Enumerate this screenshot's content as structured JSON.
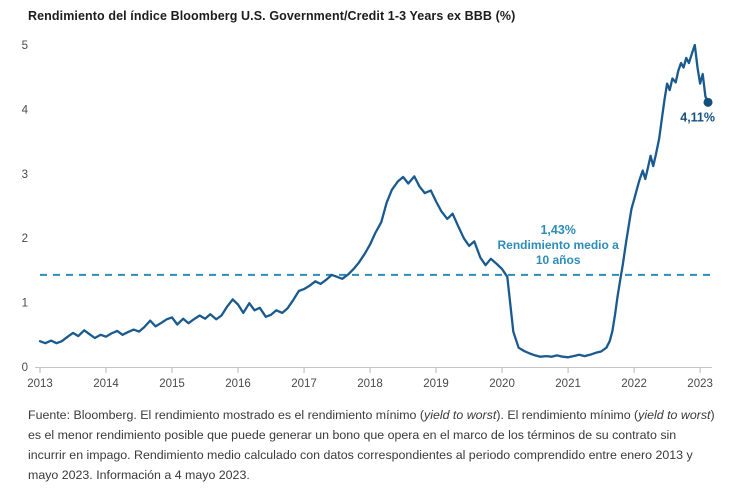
{
  "title": "Rendimiento del índice Bloomberg U.S. Government/Credit 1-3 Years ex BBB (%)",
  "colors": {
    "line": "#1a5a8e",
    "accent": "#2d8cba",
    "dot": "#14507d",
    "end_label": "#14507d",
    "axis": "#c4c4c4",
    "tick": "#b5b5b5",
    "tick_label": "#4a4a4a",
    "title": "#1c1c1c",
    "footer": "#3a3a3a"
  },
  "chart_data": {
    "type": "line",
    "title": "Rendimiento del índice Bloomberg U.S. Government/Credit 1-3 Years ex BBB (%)",
    "xlabel": "",
    "ylabel": "",
    "xlim": [
      2013,
      2023.15
    ],
    "ylim": [
      0,
      5
    ],
    "grid": false,
    "legend": "none",
    "xticks": [
      2013,
      2014,
      2015,
      2016,
      2017,
      2018,
      2019,
      2020,
      2021,
      2022,
      2023
    ],
    "yticks": [
      0,
      1,
      2,
      3,
      4,
      5
    ],
    "series": [
      {
        "name": "Rendimiento (%)",
        "points": [
          [
            2013.0,
            0.4
          ],
          [
            2013.08,
            0.37
          ],
          [
            2013.17,
            0.41
          ],
          [
            2013.25,
            0.37
          ],
          [
            2013.33,
            0.4
          ],
          [
            2013.42,
            0.47
          ],
          [
            2013.5,
            0.53
          ],
          [
            2013.58,
            0.48
          ],
          [
            2013.67,
            0.57
          ],
          [
            2013.75,
            0.51
          ],
          [
            2013.83,
            0.45
          ],
          [
            2013.92,
            0.5
          ],
          [
            2014.0,
            0.47
          ],
          [
            2014.08,
            0.52
          ],
          [
            2014.17,
            0.56
          ],
          [
            2014.25,
            0.5
          ],
          [
            2014.33,
            0.54
          ],
          [
            2014.42,
            0.58
          ],
          [
            2014.5,
            0.55
          ],
          [
            2014.58,
            0.62
          ],
          [
            2014.67,
            0.72
          ],
          [
            2014.75,
            0.63
          ],
          [
            2014.83,
            0.68
          ],
          [
            2014.92,
            0.74
          ],
          [
            2015.0,
            0.77
          ],
          [
            2015.08,
            0.66
          ],
          [
            2015.17,
            0.75
          ],
          [
            2015.25,
            0.68
          ],
          [
            2015.33,
            0.74
          ],
          [
            2015.42,
            0.8
          ],
          [
            2015.5,
            0.75
          ],
          [
            2015.58,
            0.82
          ],
          [
            2015.67,
            0.74
          ],
          [
            2015.75,
            0.8
          ],
          [
            2015.83,
            0.93
          ],
          [
            2015.92,
            1.05
          ],
          [
            2016.0,
            0.97
          ],
          [
            2016.08,
            0.84
          ],
          [
            2016.17,
            0.99
          ],
          [
            2016.25,
            0.88
          ],
          [
            2016.33,
            0.92
          ],
          [
            2016.42,
            0.78
          ],
          [
            2016.5,
            0.81
          ],
          [
            2016.58,
            0.88
          ],
          [
            2016.67,
            0.84
          ],
          [
            2016.75,
            0.91
          ],
          [
            2016.83,
            1.03
          ],
          [
            2016.92,
            1.18
          ],
          [
            2017.0,
            1.21
          ],
          [
            2017.08,
            1.26
          ],
          [
            2017.17,
            1.33
          ],
          [
            2017.25,
            1.29
          ],
          [
            2017.33,
            1.35
          ],
          [
            2017.42,
            1.43
          ],
          [
            2017.5,
            1.4
          ],
          [
            2017.58,
            1.37
          ],
          [
            2017.67,
            1.44
          ],
          [
            2017.75,
            1.52
          ],
          [
            2017.83,
            1.62
          ],
          [
            2017.92,
            1.76
          ],
          [
            2018.0,
            1.9
          ],
          [
            2018.08,
            2.08
          ],
          [
            2018.17,
            2.25
          ],
          [
            2018.25,
            2.55
          ],
          [
            2018.33,
            2.75
          ],
          [
            2018.42,
            2.88
          ],
          [
            2018.5,
            2.95
          ],
          [
            2018.58,
            2.85
          ],
          [
            2018.67,
            2.96
          ],
          [
            2018.75,
            2.8
          ],
          [
            2018.83,
            2.7
          ],
          [
            2018.92,
            2.74
          ],
          [
            2019.0,
            2.57
          ],
          [
            2019.08,
            2.42
          ],
          [
            2019.17,
            2.3
          ],
          [
            2019.25,
            2.38
          ],
          [
            2019.33,
            2.2
          ],
          [
            2019.42,
            2.0
          ],
          [
            2019.5,
            1.88
          ],
          [
            2019.58,
            1.95
          ],
          [
            2019.67,
            1.7
          ],
          [
            2019.75,
            1.58
          ],
          [
            2019.83,
            1.68
          ],
          [
            2019.92,
            1.6
          ],
          [
            2020.0,
            1.52
          ],
          [
            2020.08,
            1.4
          ],
          [
            2020.17,
            0.55
          ],
          [
            2020.25,
            0.3
          ],
          [
            2020.33,
            0.25
          ],
          [
            2020.42,
            0.21
          ],
          [
            2020.5,
            0.18
          ],
          [
            2020.58,
            0.16
          ],
          [
            2020.67,
            0.17
          ],
          [
            2020.75,
            0.16
          ],
          [
            2020.83,
            0.18
          ],
          [
            2020.92,
            0.16
          ],
          [
            2021.0,
            0.15
          ],
          [
            2021.08,
            0.17
          ],
          [
            2021.17,
            0.19
          ],
          [
            2021.25,
            0.17
          ],
          [
            2021.33,
            0.19
          ],
          [
            2021.42,
            0.22
          ],
          [
            2021.5,
            0.24
          ],
          [
            2021.58,
            0.3
          ],
          [
            2021.63,
            0.4
          ],
          [
            2021.67,
            0.55
          ],
          [
            2021.71,
            0.8
          ],
          [
            2021.75,
            1.1
          ],
          [
            2021.79,
            1.35
          ],
          [
            2021.83,
            1.6
          ],
          [
            2021.88,
            1.95
          ],
          [
            2021.92,
            2.2
          ],
          [
            2021.96,
            2.45
          ],
          [
            2022.0,
            2.6
          ],
          [
            2022.04,
            2.75
          ],
          [
            2022.08,
            2.9
          ],
          [
            2022.13,
            3.05
          ],
          [
            2022.17,
            2.92
          ],
          [
            2022.21,
            3.1
          ],
          [
            2022.25,
            3.28
          ],
          [
            2022.29,
            3.12
          ],
          [
            2022.33,
            3.3
          ],
          [
            2022.38,
            3.55
          ],
          [
            2022.42,
            3.85
          ],
          [
            2022.46,
            4.15
          ],
          [
            2022.5,
            4.4
          ],
          [
            2022.54,
            4.3
          ],
          [
            2022.58,
            4.48
          ],
          [
            2022.63,
            4.42
          ],
          [
            2022.67,
            4.6
          ],
          [
            2022.71,
            4.72
          ],
          [
            2022.75,
            4.65
          ],
          [
            2022.79,
            4.8
          ],
          [
            2022.83,
            4.72
          ],
          [
            2022.88,
            4.88
          ],
          [
            2022.92,
            5.0
          ],
          [
            2022.96,
            4.65
          ],
          [
            2023.0,
            4.4
          ],
          [
            2023.04,
            4.55
          ],
          [
            2023.08,
            4.2
          ],
          [
            2023.12,
            4.11
          ]
        ]
      }
    ],
    "mean_line": {
      "value": 1.43,
      "label_lines": [
        "1,43%",
        "Rendimiento medio a",
        "10 años"
      ]
    },
    "end_point": {
      "x": 2023.12,
      "y": 4.11,
      "label": "4,11%"
    }
  },
  "footer": {
    "segments": [
      {
        "text": "Fuente: Bloomberg. El rendimiento mostrado es el rendimiento mínimo (",
        "italic": false
      },
      {
        "text": "yield to worst",
        "italic": true
      },
      {
        "text": "). El rendimiento mínimo (",
        "italic": false
      },
      {
        "text": "yield to worst",
        "italic": true
      },
      {
        "text": ") es el menor rendimiento posible que puede generar un bono que opera en el marco de los términos de su contrato sin incurrir en impago. Rendimiento medio calculado con datos correspondientes al periodo comprendido entre enero 2013 y mayo 2023. Información a 4 mayo 2023.",
        "italic": false
      }
    ]
  }
}
